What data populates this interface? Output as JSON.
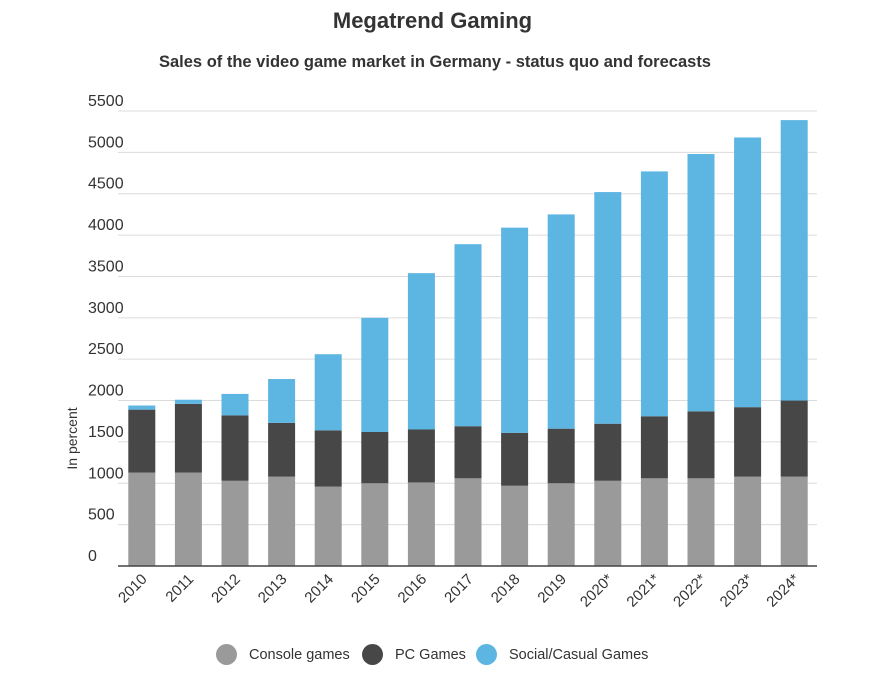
{
  "title": "Megatrend Gaming",
  "subtitle": "Sales of the video game market in Germany - status quo and forecasts",
  "colors": {
    "console": "#9a9a9a",
    "pc": "#474747",
    "social": "#5db5e2",
    "grid": "#dcdcdc",
    "axis": "#444444"
  },
  "chart_data": {
    "type": "bar",
    "stacked": true,
    "title": "Megatrend Gaming",
    "subtitle": "Sales of the video game market in Germany - status quo and forecasts",
    "xlabel": "",
    "ylabel": "In percent",
    "ylim": [
      0,
      5500
    ],
    "yticks": [
      0,
      500,
      1000,
      1500,
      2000,
      2500,
      3000,
      3500,
      4000,
      4500,
      5000,
      5500
    ],
    "grid": true,
    "legend_position": "bottom",
    "categories": [
      "2010",
      "2011",
      "2012",
      "2013",
      "2014",
      "2015",
      "2016",
      "2017",
      "2018",
      "2019",
      "2020*",
      "2021*",
      "2022*",
      "2023*",
      "2024*"
    ],
    "series": [
      {
        "name": "Console games",
        "color": "#9a9a9a",
        "values": [
          1130,
          1130,
          1030,
          1080,
          960,
          1000,
          1010,
          1060,
          970,
          1000,
          1030,
          1060,
          1060,
          1080,
          1080
        ]
      },
      {
        "name": "PC Games",
        "color": "#474747",
        "values": [
          760,
          830,
          790,
          650,
          680,
          620,
          640,
          630,
          640,
          660,
          690,
          750,
          810,
          840,
          920
        ]
      },
      {
        "name": "Social/Casual Games",
        "color": "#5db5e2",
        "values": [
          50,
          50,
          260,
          530,
          920,
          1380,
          1890,
          2200,
          2480,
          2590,
          2800,
          2960,
          3110,
          3260,
          3390
        ]
      }
    ]
  }
}
